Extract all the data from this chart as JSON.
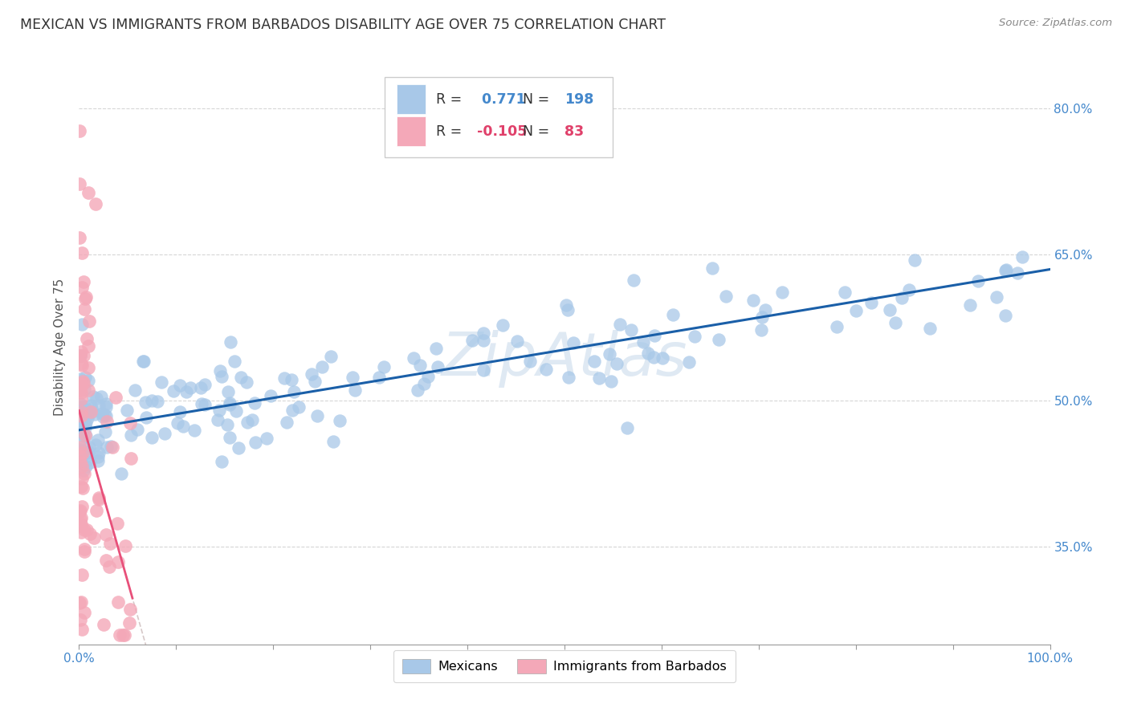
{
  "title": "MEXICAN VS IMMIGRANTS FROM BARBADOS DISABILITY AGE OVER 75 CORRELATION CHART",
  "source": "Source: ZipAtlas.com",
  "xlabel_blue": "Mexicans",
  "xlabel_pink": "Immigrants from Barbados",
  "ylabel": "Disability Age Over 75",
  "watermark": "ZipAtlas",
  "blue_R": 0.771,
  "blue_N": 198,
  "pink_R": -0.105,
  "pink_N": 83,
  "blue_color": "#a8c8e8",
  "pink_color": "#f4a8b8",
  "blue_line_color": "#1a5fa8",
  "pink_line_color": "#e8507a",
  "bg_color": "#ffffff",
  "grid_color": "#cccccc",
  "axis_label_color": "#4488cc",
  "x_min": 0.0,
  "x_max": 1.0,
  "y_min": 0.25,
  "y_max": 0.86,
  "blue_line_x0": 0.0,
  "blue_line_y0": 0.47,
  "blue_line_x1": 1.0,
  "blue_line_y1": 0.635,
  "pink_line_x0": 0.0,
  "pink_line_y0": 0.49,
  "pink_slope": -3.5,
  "pink_line_extent": 0.055,
  "pink_dash_extent": 0.18
}
